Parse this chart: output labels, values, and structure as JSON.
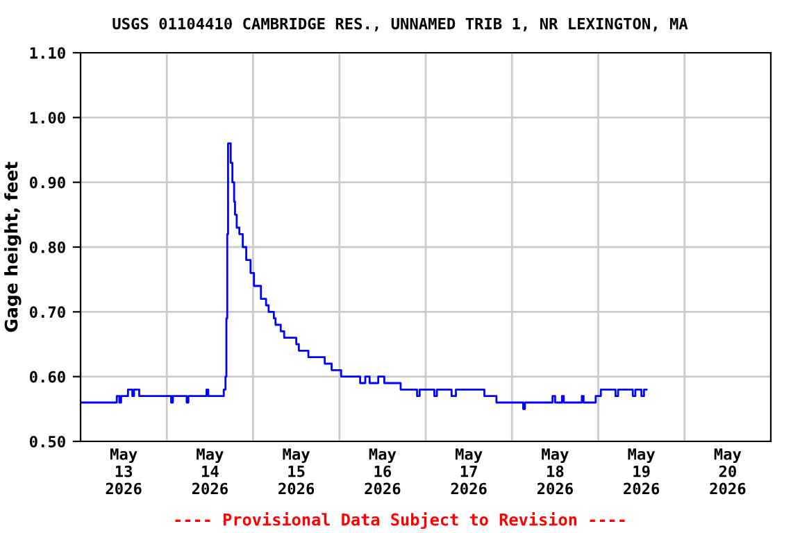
{
  "chart_data": {
    "type": "step",
    "title": "USGS 01104410 CAMBRIDGE RES., UNNAMED TRIB 1, NR LEXINGTON, MA",
    "ylabel": "Gage height, feet",
    "annotations": [
      "---- Provisional Data Subject to Revision ----"
    ],
    "x": [
      "2026-05-13T00:00",
      "2026-05-13T10:05",
      "2026-05-13T10:48",
      "2026-05-13T11:17",
      "2026-05-13T13:12",
      "2026-05-13T14:24",
      "2026-05-13T14:53",
      "2026-05-13T16:19",
      "2026-05-14T01:12",
      "2026-05-14T01:41",
      "2026-05-14T05:31",
      "2026-05-14T06:00",
      "2026-05-14T11:02",
      "2026-05-14T11:31",
      "2026-05-14T15:50",
      "2026-05-14T16:19",
      "2026-05-14T16:34",
      "2026-05-14T16:48",
      "2026-05-14T17:02",
      "2026-05-14T17:46",
      "2026-05-14T18:14",
      "2026-05-14T18:43",
      "2026-05-14T18:58",
      "2026-05-14T19:26",
      "2026-05-14T20:10",
      "2026-05-14T21:07",
      "2026-05-14T22:05",
      "2026-05-14T23:17",
      "2026-05-15T00:14",
      "2026-05-15T02:10",
      "2026-05-15T03:36",
      "2026-05-15T04:19",
      "2026-05-15T05:46",
      "2026-05-15T06:14",
      "2026-05-15T07:41",
      "2026-05-15T08:38",
      "2026-05-15T12:00",
      "2026-05-15T12:43",
      "2026-05-15T15:22",
      "2026-05-15T19:55",
      "2026-05-15T21:50",
      "2026-05-16T00:29",
      "2026-05-16T05:46",
      "2026-05-16T07:12",
      "2026-05-16T08:24",
      "2026-05-16T10:48",
      "2026-05-16T12:29",
      "2026-05-16T17:02",
      "2026-05-16T21:36",
      "2026-05-16T22:19",
      "2026-05-17T02:24",
      "2026-05-17T03:07",
      "2026-05-17T07:12",
      "2026-05-17T08:24",
      "2026-05-17T16:19",
      "2026-05-17T19:41",
      "2026-05-18T03:07",
      "2026-05-18T03:36",
      "2026-05-18T11:17",
      "2026-05-18T12:00",
      "2026-05-18T13:55",
      "2026-05-18T14:24",
      "2026-05-18T19:26",
      "2026-05-18T19:55",
      "2026-05-18T23:17",
      "2026-05-19T00:43",
      "2026-05-19T04:48",
      "2026-05-19T05:31",
      "2026-05-19T09:36",
      "2026-05-19T10:19",
      "2026-05-19T12:00",
      "2026-05-19T12:43",
      "2026-05-19T13:26"
    ],
    "series": [
      {
        "color": "#0000ff",
        "values": [
          0.56,
          0.57,
          0.56,
          0.57,
          0.58,
          0.57,
          0.58,
          0.57,
          0.56,
          0.57,
          0.56,
          0.57,
          0.58,
          0.57,
          0.58,
          0.6,
          0.69,
          0.82,
          0.96,
          0.93,
          0.9,
          0.87,
          0.85,
          0.83,
          0.82,
          0.8,
          0.78,
          0.76,
          0.74,
          0.72,
          0.71,
          0.7,
          0.69,
          0.68,
          0.67,
          0.66,
          0.65,
          0.64,
          0.63,
          0.62,
          0.61,
          0.6,
          0.59,
          0.6,
          0.59,
          0.6,
          0.59,
          0.58,
          0.57,
          0.58,
          0.57,
          0.58,
          0.57,
          0.58,
          0.57,
          0.56,
          0.55,
          0.56,
          0.57,
          0.56,
          0.57,
          0.56,
          0.57,
          0.56,
          0.57,
          0.58,
          0.57,
          0.58,
          0.57,
          0.58,
          0.57,
          0.58,
          0.58
        ]
      }
    ],
    "xlim": [
      "2026-05-13",
      "2026-05-21"
    ],
    "xticks": [
      {
        "value": "2026-05-13",
        "label": null
      },
      {
        "value": "2026-05-14",
        "label": null
      },
      {
        "value": "2026-05-15",
        "label": null
      },
      {
        "value": "2026-05-16",
        "label": null
      },
      {
        "value": "2026-05-17",
        "label": null
      },
      {
        "value": "2026-05-18",
        "label": null
      },
      {
        "value": "2026-05-19",
        "label": null
      },
      {
        "value": "2026-05-20",
        "label": null
      },
      {
        "value": "2026-05-21",
        "label": null
      },
      {
        "value": "2026-05-13T12:00",
        "label": "May\n13\n2026"
      },
      {
        "value": "2026-05-14T12:00",
        "label": "May\n14\n2026"
      },
      {
        "value": "2026-05-15T12:00",
        "label": "May\n15\n2026"
      },
      {
        "value": "2026-05-16T12:00",
        "label": "May\n16\n2026"
      },
      {
        "value": "2026-05-17T12:00",
        "label": "May\n17\n2026"
      },
      {
        "value": "2026-05-18T12:00",
        "label": "May\n18\n2026"
      },
      {
        "value": "2026-05-19T12:00",
        "label": "May\n19\n2026"
      },
      {
        "value": "2026-05-20T12:00",
        "label": "May\n20\n2026"
      }
    ],
    "ylim": [
      0.5,
      1.1
    ],
    "yticks": [
      {
        "value": 0.5,
        "label": "0.50"
      },
      {
        "value": 0.6,
        "label": "0.60"
      },
      {
        "value": 0.7,
        "label": "0.70"
      },
      {
        "value": 0.8,
        "label": "0.80"
      },
      {
        "value": 0.9,
        "label": "0.90"
      },
      {
        "value": 1.0,
        "label": "1.00"
      },
      {
        "value": 1.1,
        "label": "1.10"
      }
    ],
    "grid": true,
    "legend": false
  }
}
